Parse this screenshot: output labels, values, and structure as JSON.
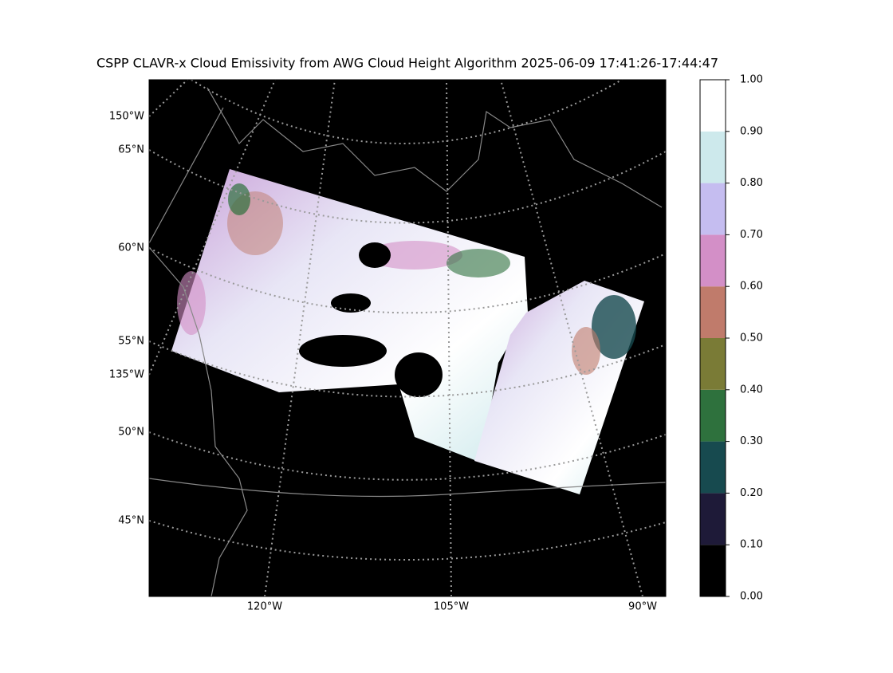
{
  "title": "CSPP CLAVR-x Cloud Emissivity from AWG Cloud Height Algorithm 2025-06-09 17:41:26-17:44:47",
  "map": {
    "left_labels": [
      "150°W",
      "65°N",
      "60°N",
      "55°N",
      "135°W",
      "50°N",
      "45°N"
    ],
    "bottom_labels": [
      "120°W",
      "105°W",
      "90°W"
    ]
  },
  "colorbar": {
    "ticks": [
      {
        "value": 0,
        "label": "0.00"
      },
      {
        "value": 0.1,
        "label": "0.10"
      },
      {
        "value": 0.2,
        "label": "0.20"
      },
      {
        "value": 0.3,
        "label": "0.30"
      },
      {
        "value": 0.4,
        "label": "0.40"
      },
      {
        "value": 0.5,
        "label": "0.50"
      },
      {
        "value": 0.6,
        "label": "0.60"
      },
      {
        "value": 0.7,
        "label": "0.70"
      },
      {
        "value": 0.8,
        "label": "0.80"
      },
      {
        "value": 0.9,
        "label": "0.90"
      },
      {
        "value": 1,
        "label": "1.00"
      }
    ],
    "colors": [
      "#000000",
      "#1e1a38",
      "#174a4f",
      "#2e713d",
      "#7a7b36",
      "#c07b6b",
      "#d38fc7",
      "#c5bdf0",
      "#cde9ec",
      "#ffffff"
    ]
  }
}
